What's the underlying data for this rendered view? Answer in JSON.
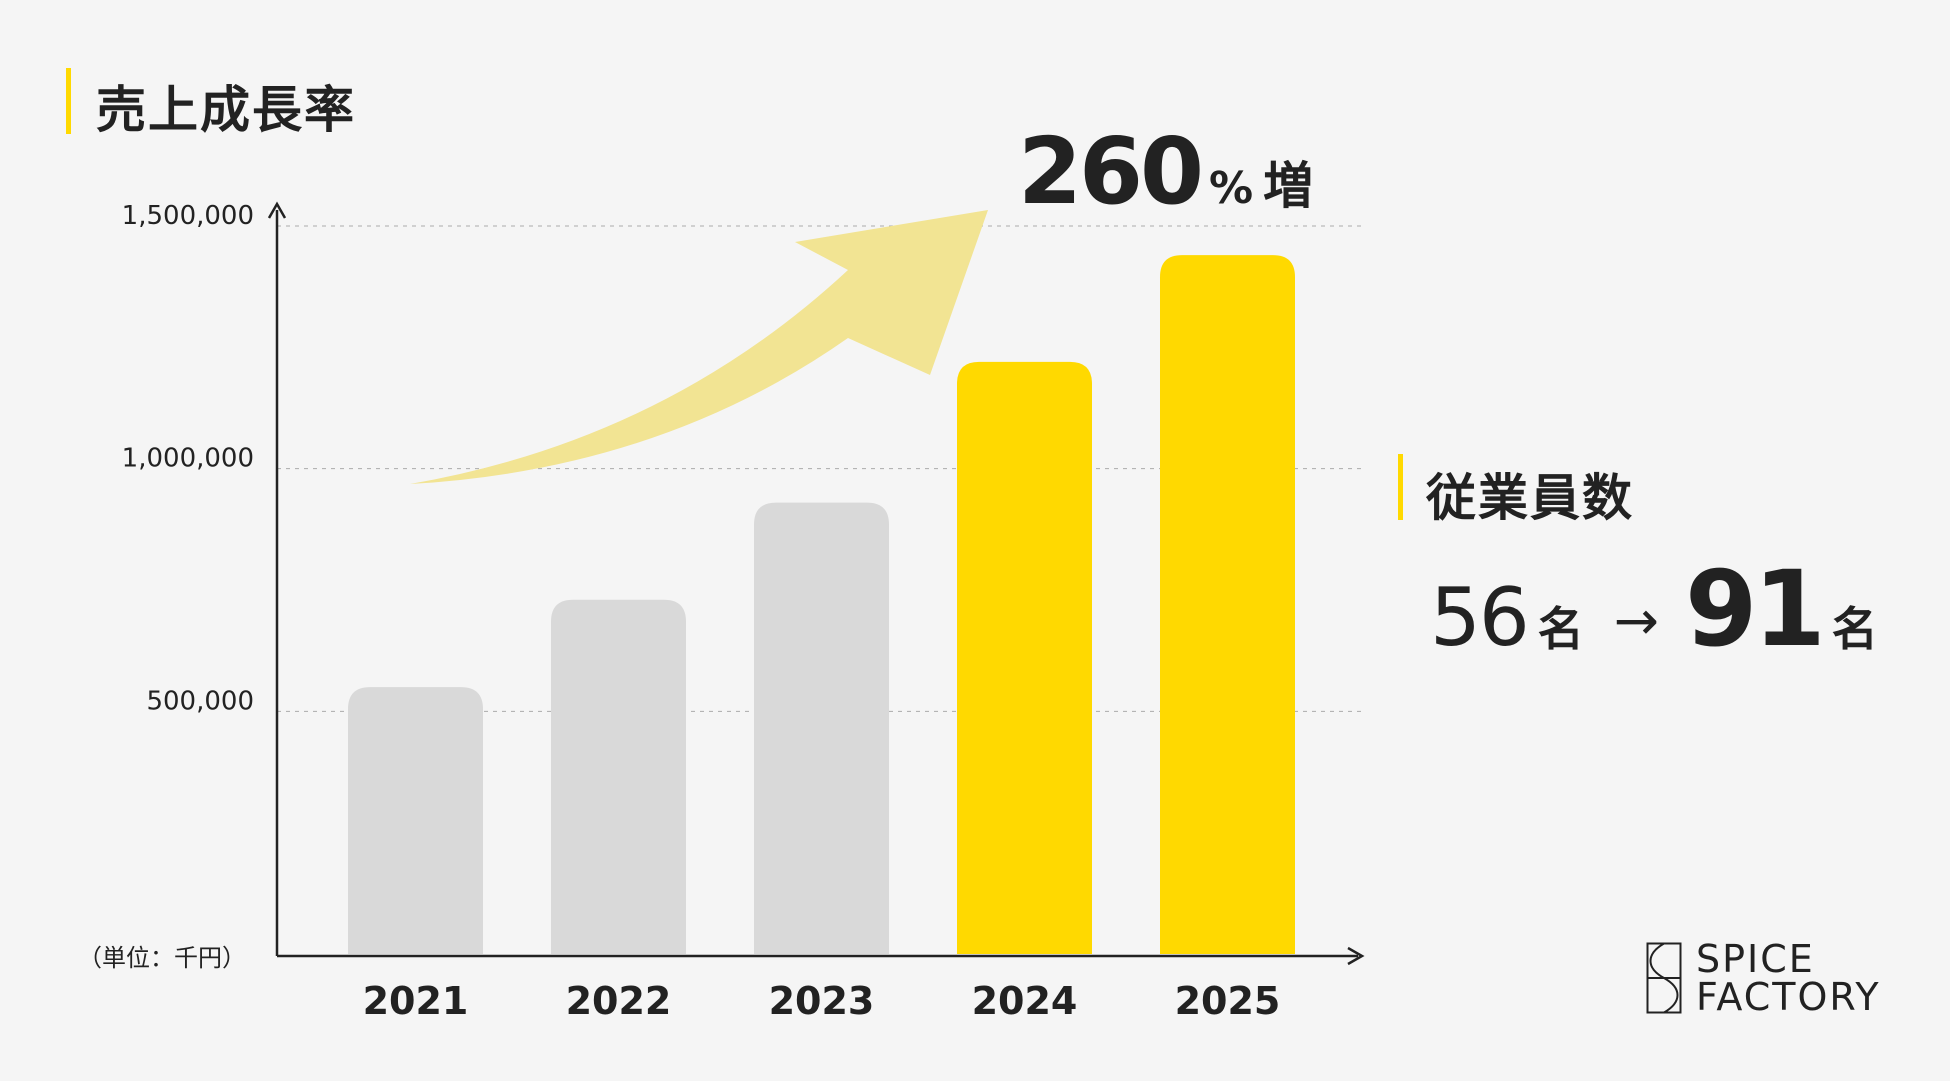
{
  "title": "売上成長率",
  "unit_label": "（単位：千円）",
  "growth": {
    "value": "260",
    "percent": "%",
    "suffix": "増"
  },
  "employees": {
    "title": "従業員数",
    "from_value": "56",
    "from_unit": "名",
    "arrow": "→",
    "to_value": "91",
    "to_unit": "名"
  },
  "logo": {
    "line1": "SPICE",
    "line2": "FACTORY"
  },
  "colors": {
    "highlight": "#ffd900",
    "muted": "#d9d9d9",
    "arrow": "#f2e493",
    "axis": "#222222",
    "background": "#f5f5f5"
  },
  "chart_data": {
    "type": "bar",
    "title": "売上成長率",
    "xlabel": "",
    "ylabel": "（単位：千円）",
    "categories": [
      "2021",
      "2022",
      "2023",
      "2024",
      "2025"
    ],
    "values": [
      550000,
      730000,
      930000,
      1220000,
      1440000
    ],
    "highlight": [
      false,
      false,
      false,
      true,
      true
    ],
    "yticks": [
      500000,
      1000000,
      1500000
    ],
    "ytick_labels": [
      "500,000",
      "1,000,000",
      "1,500,000"
    ],
    "ylim": [
      0,
      1500000
    ],
    "grid": true,
    "annotation": "260% 増"
  }
}
